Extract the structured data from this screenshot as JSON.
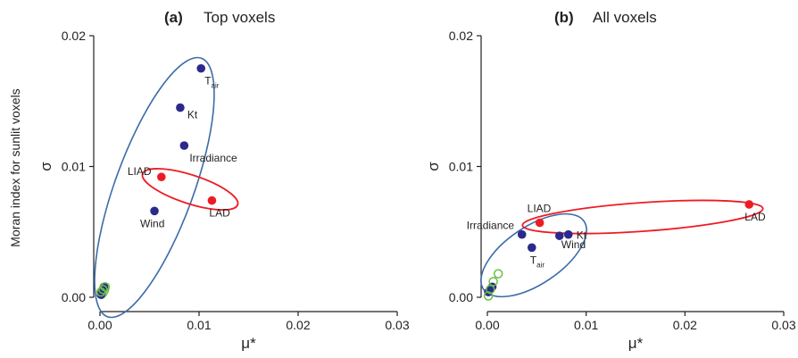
{
  "chart_data": [
    {
      "type": "scatter",
      "panel": "(a)",
      "title": "Top voxels",
      "xlabel": "μ*",
      "ylabel": "σ",
      "ylabel_outer": "Moran index for sunlit voxels",
      "xlim": [
        0,
        0.03
      ],
      "ylim": [
        0,
        0.02
      ],
      "xticks": [
        "0.00",
        "0.01",
        "0.02",
        "0.03"
      ],
      "yticks": [
        "0.00",
        "0.01",
        "0.02"
      ],
      "points": [
        {
          "label": "T",
          "label_sub": "air",
          "x": 0.0102,
          "y": 0.0175,
          "group": "meteorological"
        },
        {
          "label": "Kt",
          "x": 0.0081,
          "y": 0.0145,
          "group": "meteorological"
        },
        {
          "label": "Irradiance",
          "x": 0.0085,
          "y": 0.0116,
          "group": "meteorological"
        },
        {
          "label": "Wind",
          "x": 0.0055,
          "y": 0.0066,
          "group": "meteorological"
        },
        {
          "label": "LIAD",
          "x": 0.0062,
          "y": 0.0092,
          "group": "canopy"
        },
        {
          "label": "LAD",
          "x": 0.0113,
          "y": 0.0074,
          "group": "canopy"
        },
        {
          "label": "",
          "x": 0.0001,
          "y": 0.0002,
          "group": "meteorological"
        },
        {
          "label": "",
          "x": 0.0002,
          "y": 0.0004,
          "group": "meteorological"
        },
        {
          "label": "",
          "x": 0.0003,
          "y": 0.0006,
          "group": "meteorological"
        },
        {
          "label": "",
          "x": 0.0004,
          "y": 0.0008,
          "group": "meteorological"
        },
        {
          "label": "",
          "x": 0.0001,
          "y": 0.0004,
          "group": "other"
        },
        {
          "label": "",
          "x": 0.0003,
          "y": 0.0006,
          "group": "other"
        },
        {
          "label": "",
          "x": 0.0005,
          "y": 0.0008,
          "group": "other"
        }
      ]
    },
    {
      "type": "scatter",
      "panel": "(b)",
      "title": "All voxels",
      "xlabel": "μ*",
      "ylabel": "σ",
      "xlim": [
        0,
        0.03
      ],
      "ylim": [
        0,
        0.02
      ],
      "xticks": [
        "0.00",
        "0.01",
        "0.02",
        "0.03"
      ],
      "yticks": [
        "0.00",
        "0.01",
        "0.02"
      ],
      "points": [
        {
          "label": "Irradiance",
          "x": 0.0035,
          "y": 0.0048,
          "group": "meteorological"
        },
        {
          "label": "T",
          "label_sub": "air",
          "x": 0.0045,
          "y": 0.0038,
          "group": "meteorological"
        },
        {
          "label": "Wind",
          "x": 0.0073,
          "y": 0.0047,
          "group": "meteorological"
        },
        {
          "label": "Kt",
          "x": 0.0082,
          "y": 0.0048,
          "group": "meteorological"
        },
        {
          "label": "LIAD",
          "x": 0.0053,
          "y": 0.0057,
          "group": "canopy"
        },
        {
          "label": "LAD",
          "x": 0.0265,
          "y": 0.0071,
          "group": "canopy"
        },
        {
          "label": "",
          "x": 0.0001,
          "y": 0.0004,
          "group": "meteorological"
        },
        {
          "label": "",
          "x": 0.0003,
          "y": 0.0006,
          "group": "meteorological"
        },
        {
          "label": "",
          "x": 0.0005,
          "y": 0.0008,
          "group": "meteorological"
        },
        {
          "label": "",
          "x": 0.0001,
          "y": 0.0001,
          "group": "other"
        },
        {
          "label": "",
          "x": 0.0003,
          "y": 0.0006,
          "group": "other"
        },
        {
          "label": "",
          "x": 0.0006,
          "y": 0.0012,
          "group": "other"
        },
        {
          "label": "",
          "x": 0.0011,
          "y": 0.0018,
          "group": "other"
        }
      ]
    }
  ],
  "colors": {
    "meteorological": "#2b2a8c",
    "canopy": "#ed1c24",
    "other": "#6abf45",
    "ellipse_meteorological": "#3b6ca8",
    "ellipse_canopy": "#ed1c24",
    "axis": "#231f20"
  }
}
